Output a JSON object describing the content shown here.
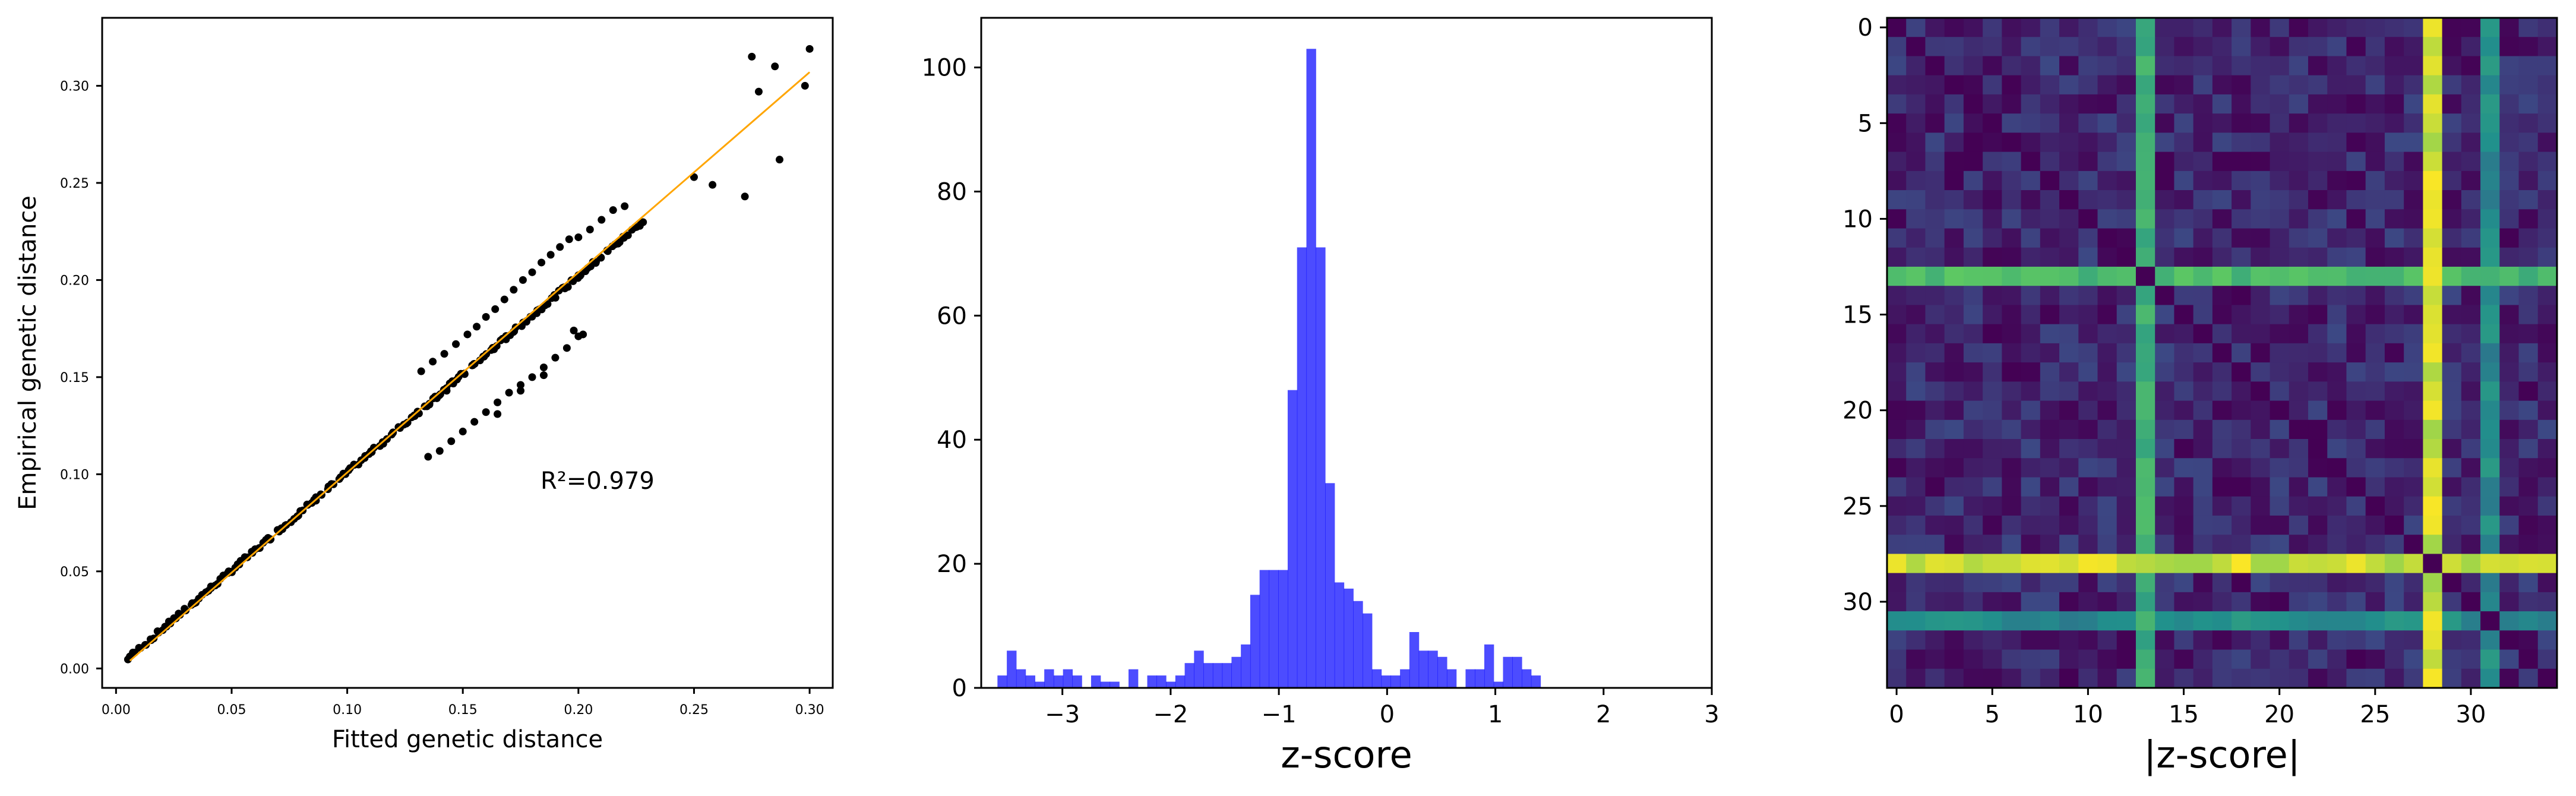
{
  "chart_data": [
    {
      "type": "scatter",
      "xlabel": "Fitted genetic distance",
      "ylabel": "Empirical genetic distance",
      "annotation": "R²=0.979",
      "xlim": [
        -0.006,
        0.31
      ],
      "ylim": [
        -0.01,
        0.335
      ],
      "xticks": [
        0.0,
        0.05,
        0.1,
        0.15,
        0.2,
        0.25,
        0.3
      ],
      "xtick_labels": [
        "0.00",
        "0.05",
        "0.10",
        "0.15",
        "0.20",
        "0.25",
        "0.30"
      ],
      "yticks": [
        0.0,
        0.05,
        0.1,
        0.15,
        0.2,
        0.25,
        0.3
      ],
      "ytick_labels": [
        "0.00",
        "0.05",
        "0.10",
        "0.15",
        "0.20",
        "0.25",
        "0.30"
      ],
      "fit_line": {
        "color": "#ffa500",
        "x": [
          0.006,
          0.3
        ],
        "y": [
          0.004,
          0.307
        ]
      },
      "point_color": "#000000",
      "main_band": {
        "x_start": 0.006,
        "x_end": 0.23,
        "step": 0.0022,
        "slope": 1.01,
        "noise": 0.0022
      },
      "points": [
        [
          0.132,
          0.153
        ],
        [
          0.137,
          0.158
        ],
        [
          0.142,
          0.162
        ],
        [
          0.147,
          0.167
        ],
        [
          0.152,
          0.172
        ],
        [
          0.156,
          0.176
        ],
        [
          0.16,
          0.181
        ],
        [
          0.164,
          0.185
        ],
        [
          0.168,
          0.19
        ],
        [
          0.172,
          0.195
        ],
        [
          0.176,
          0.2
        ],
        [
          0.18,
          0.204
        ],
        [
          0.184,
          0.209
        ],
        [
          0.188,
          0.213
        ],
        [
          0.192,
          0.217
        ],
        [
          0.196,
          0.221
        ],
        [
          0.2,
          0.222
        ],
        [
          0.205,
          0.226
        ],
        [
          0.21,
          0.231
        ],
        [
          0.215,
          0.236
        ],
        [
          0.22,
          0.238
        ],
        [
          0.135,
          0.109
        ],
        [
          0.14,
          0.112
        ],
        [
          0.145,
          0.117
        ],
        [
          0.15,
          0.122
        ],
        [
          0.155,
          0.127
        ],
        [
          0.16,
          0.132
        ],
        [
          0.165,
          0.137
        ],
        [
          0.17,
          0.142
        ],
        [
          0.175,
          0.146
        ],
        [
          0.18,
          0.15
        ],
        [
          0.185,
          0.155
        ],
        [
          0.19,
          0.16
        ],
        [
          0.195,
          0.165
        ],
        [
          0.2,
          0.171
        ],
        [
          0.138,
          0.14
        ],
        [
          0.143,
          0.143
        ],
        [
          0.165,
          0.131
        ],
        [
          0.175,
          0.143
        ],
        [
          0.185,
          0.151
        ],
        [
          0.198,
          0.174
        ],
        [
          0.202,
          0.172
        ],
        [
          0.25,
          0.253
        ],
        [
          0.258,
          0.249
        ],
        [
          0.272,
          0.243
        ],
        [
          0.275,
          0.315
        ],
        [
          0.278,
          0.297
        ],
        [
          0.285,
          0.31
        ],
        [
          0.287,
          0.262
        ],
        [
          0.298,
          0.3
        ],
        [
          0.3,
          0.319
        ]
      ]
    },
    {
      "type": "histogram",
      "xlabel": "z-score",
      "color": "#0000ff",
      "xlim": [
        -3.75,
        3.0
      ],
      "ylim": [
        0,
        108
      ],
      "xticks": [
        -3,
        -2,
        -1,
        0,
        1,
        2,
        3
      ],
      "xtick_labels": [
        "−3",
        "−2",
        "−1",
        "0",
        "1",
        "2",
        "3"
      ],
      "yticks": [
        0,
        20,
        40,
        60,
        80,
        100
      ],
      "ytick_labels": [
        "0",
        "20",
        "40",
        "60",
        "80",
        "100"
      ],
      "bin_start": -3.6,
      "bin_width": 0.0865,
      "counts": [
        2,
        6,
        3,
        2,
        1,
        3,
        2,
        3,
        2,
        0,
        2,
        1,
        1,
        0,
        3,
        0,
        2,
        2,
        1,
        2,
        4,
        6,
        4,
        4,
        4,
        5,
        7,
        15,
        19,
        19,
        19,
        48,
        71,
        103,
        71,
        33,
        17,
        16,
        14,
        12,
        3,
        2,
        2,
        3,
        9,
        6,
        6,
        5,
        3,
        0,
        3,
        3,
        7,
        1,
        5,
        5,
        3,
        2
      ]
    },
    {
      "type": "heatmap",
      "xlabel": "|z-score|",
      "colormap": "viridis",
      "n": 35,
      "highlight_rows": {
        "13": 0.7,
        "28": 0.95,
        "31": 0.5
      },
      "highlight_cols": {
        "13": 0.65,
        "28": 0.95,
        "31": 0.5
      },
      "xticks": [
        0,
        5,
        10,
        15,
        20,
        25,
        30
      ],
      "xtick_labels": [
        "0",
        "5",
        "10",
        "15",
        "20",
        "25",
        "30"
      ],
      "yticks": [
        0,
        5,
        10,
        15,
        20,
        25,
        30
      ],
      "ytick_labels": [
        "0",
        "5",
        "10",
        "15",
        "20",
        "25",
        "30"
      ]
    }
  ]
}
